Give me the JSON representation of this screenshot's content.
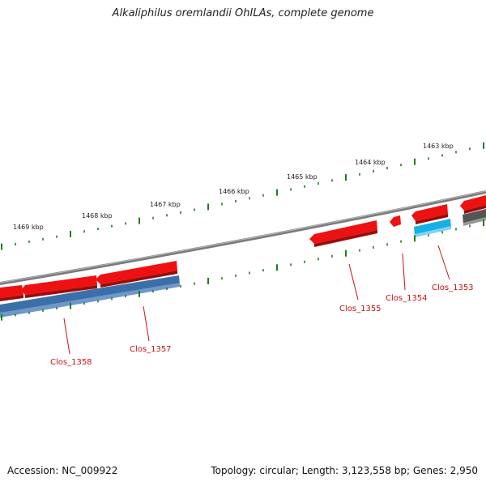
{
  "title": "Alkaliphilus oremlandii OhILAs, complete genome",
  "footer": {
    "accession": "Accession: NC_009922",
    "summary": "Topology: circular; Length: 3,123,558 bp; Genes: 2,950"
  },
  "scale": {
    "labels": [
      "1469 kbp",
      "1468 kbp",
      "1467 kbp",
      "1466 kbp",
      "1465 kbp",
      "1464 kbp",
      "1463 kbp"
    ]
  },
  "genes": {
    "labels": [
      "Clos_1358",
      "Clos_1357",
      "Clos_1355",
      "Clos_1354",
      "Clos_1353"
    ]
  },
  "colors": {
    "forward_cds": "#ee1111",
    "forward_gene": "#3c6fa8",
    "highlight_gene": "#16b0e6",
    "backbone": "#7a7a7a",
    "dark_feature": "#555555",
    "tick": "#1d7d1d",
    "label": "#cc1111"
  }
}
